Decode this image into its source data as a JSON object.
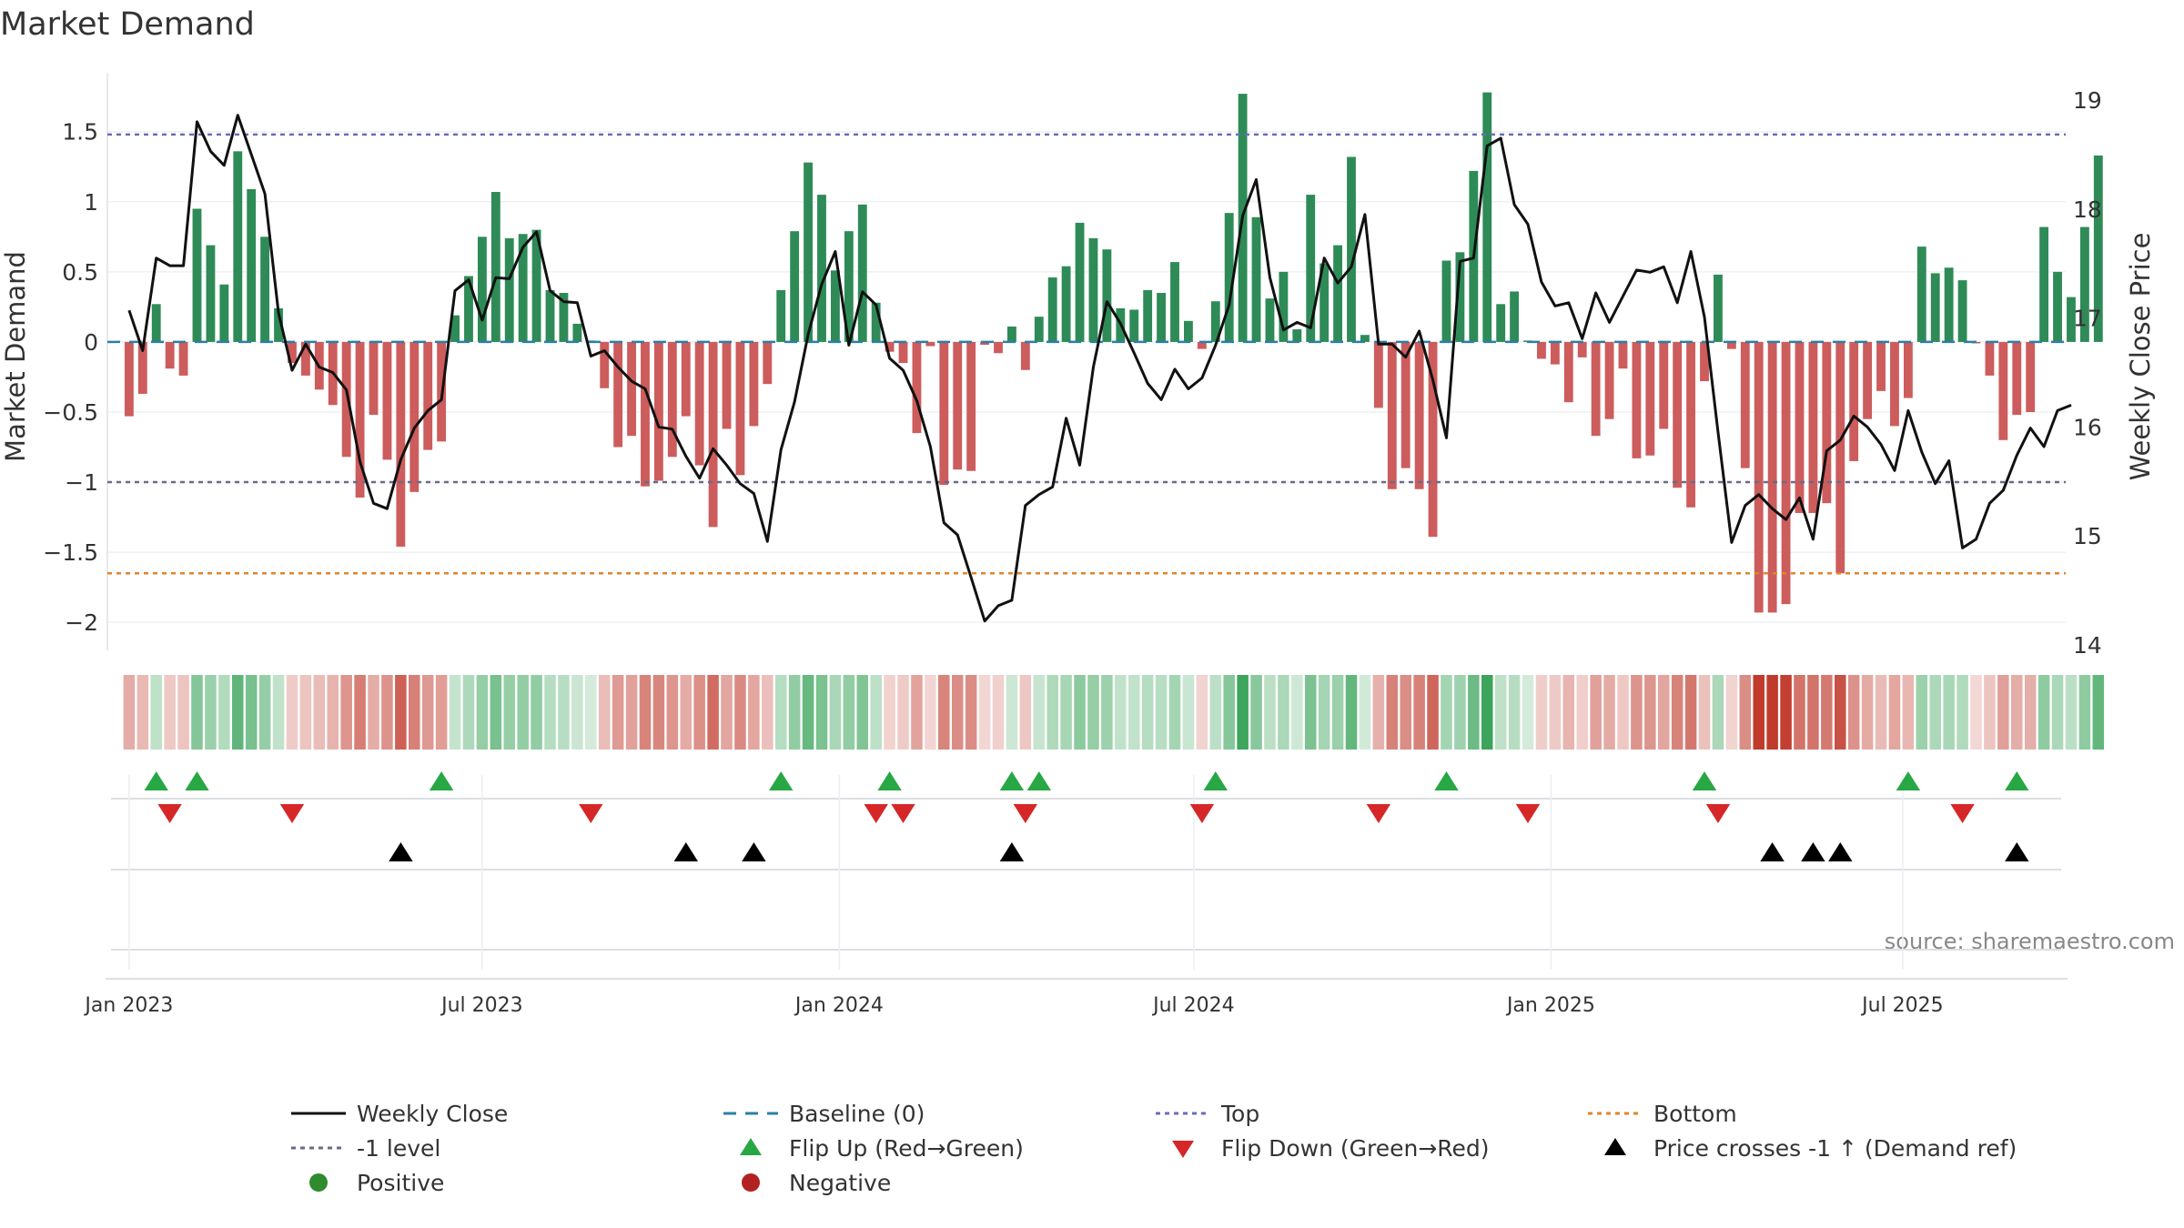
{
  "chart_data": {
    "type": "bar",
    "title": "Market Demand",
    "ylabel": "Market Demand",
    "y2label": "Weekly Close Price",
    "ylim": [
      -2.2,
      1.92
    ],
    "y2lim": [
      13.95,
      19.25
    ],
    "yticks": [
      1.5,
      1,
      0.5,
      0,
      -0.5,
      -1,
      -1.5,
      -2
    ],
    "ytick_labels": [
      "1.5",
      "1",
      "0.5",
      "0",
      "−0.5",
      "−1",
      "−1.5",
      "−2"
    ],
    "y2ticks": [
      19,
      18,
      17,
      16,
      15,
      14
    ],
    "y2tick_labels": [
      "19",
      "18",
      "17",
      "16",
      "15",
      "14"
    ],
    "xlim": [
      -1.6,
      142.6
    ],
    "xticks": [
      0,
      26,
      52.3,
      78.4,
      104.7,
      130.6
    ],
    "xtick_labels": [
      "Jan 2023",
      "Jul 2023",
      "Jan 2024",
      "Jul 2024",
      "Jan 2025",
      "Jul 2025"
    ],
    "top_level": 1.48,
    "minus_one_level": -1.0,
    "bottom_level": -1.65,
    "source": "source: sharemaestro.com",
    "series": [
      {
        "name": "Market Demand",
        "values": [
          -0.53,
          -0.37,
          0.27,
          -0.19,
          -0.24,
          0.95,
          0.69,
          0.41,
          1.36,
          1.09,
          0.75,
          0.24,
          -0.15,
          -0.24,
          -0.34,
          -0.45,
          -0.82,
          -1.11,
          -0.52,
          -0.84,
          -1.46,
          -1.07,
          -0.77,
          -0.71,
          0.19,
          0.47,
          0.75,
          1.07,
          0.74,
          0.77,
          0.8,
          0.37,
          0.35,
          0.13,
          0.01,
          -0.33,
          -0.75,
          -0.67,
          -1.03,
          -0.99,
          -0.82,
          -0.53,
          -0.88,
          -1.32,
          -0.62,
          -0.95,
          -0.6,
          -0.3,
          0.37,
          0.79,
          1.28,
          1.05,
          0.51,
          0.79,
          0.98,
          0.28,
          -0.07,
          -0.15,
          -0.65,
          -0.03,
          -1.02,
          -0.91,
          -0.92,
          -0.02,
          -0.08,
          0.11,
          -0.2,
          0.18,
          0.46,
          0.54,
          0.85,
          0.74,
          0.66,
          0.24,
          0.23,
          0.37,
          0.35,
          0.57,
          0.15,
          -0.05,
          0.29,
          0.92,
          1.77,
          0.89,
          0.31,
          0.5,
          0.09,
          1.05,
          0.56,
          0.69,
          1.32,
          0.05,
          -0.47,
          -1.05,
          -0.9,
          -1.05,
          -1.39,
          0.58,
          0.64,
          1.22,
          1.78,
          0.27,
          0.36,
          0.01,
          -0.12,
          -0.16,
          -0.43,
          -0.11,
          -0.67,
          -0.55,
          -0.19,
          -0.83,
          -0.81,
          -0.62,
          -1.04,
          -1.18,
          -0.28,
          0.48,
          -0.05,
          -0.9,
          -1.93,
          -1.93,
          -1.87,
          -1.22,
          -1.22,
          -1.15,
          -1.65,
          -0.85,
          -0.55,
          -0.35,
          -0.6,
          -0.4,
          0.68,
          0.49,
          0.53,
          0.44,
          -0.01,
          -0.24,
          -0.7,
          -0.52,
          -0.5,
          0.82,
          0.5,
          0.32,
          0.82,
          1.33
        ]
      },
      {
        "name": "Weekly Close",
        "values": [
          17.07,
          16.7,
          17.55,
          17.48,
          17.48,
          18.8,
          18.53,
          18.4,
          18.86,
          18.5,
          18.14,
          17.05,
          16.52,
          16.76,
          16.55,
          16.5,
          16.34,
          15.68,
          15.3,
          15.25,
          15.7,
          15.99,
          16.15,
          16.25,
          17.25,
          17.35,
          16.98,
          17.37,
          17.36,
          17.65,
          17.79,
          17.25,
          17.15,
          17.14,
          16.65,
          16.7,
          16.55,
          16.42,
          16.35,
          16.0,
          15.98,
          15.73,
          15.53,
          15.8,
          15.65,
          15.48,
          15.39,
          14.95,
          15.79,
          16.23,
          16.85,
          17.31,
          17.61,
          16.75,
          17.24,
          17.12,
          16.63,
          16.52,
          16.24,
          15.82,
          15.12,
          15.01,
          14.62,
          14.22,
          14.36,
          14.41,
          15.28,
          15.38,
          15.45,
          16.08,
          15.65,
          16.55,
          17.15,
          16.95,
          16.68,
          16.4,
          16.25,
          16.53,
          16.35,
          16.45,
          16.75,
          17.12,
          17.94,
          18.27,
          17.37,
          16.89,
          16.96,
          16.91,
          17.55,
          17.32,
          17.47,
          17.95,
          16.76,
          16.76,
          16.64,
          16.88,
          16.43,
          15.9,
          17.52,
          17.55,
          18.58,
          18.65,
          18.04,
          17.86,
          17.33,
          17.11,
          17.14,
          16.81,
          17.23,
          16.96,
          17.2,
          17.44,
          17.42,
          17.47,
          17.14,
          17.61,
          17.01,
          15.95,
          14.94,
          15.28,
          15.38,
          15.25,
          15.15,
          15.35,
          14.97,
          15.78,
          15.88,
          16.1,
          16.0,
          15.84,
          15.6,
          16.15,
          15.77,
          15.48,
          15.69,
          14.89,
          14.97,
          15.3,
          15.42,
          15.74,
          15.99,
          15.82,
          16.15,
          16.2
        ]
      }
    ],
    "flip_up_idx": [
      2,
      5,
      23,
      48,
      56,
      65,
      67,
      80,
      97,
      116,
      131,
      139
    ],
    "flip_down_idx": [
      3,
      12,
      34,
      55,
      57,
      66,
      79,
      92,
      103,
      117,
      135
    ],
    "price_cross_idx": [
      20,
      41,
      46,
      65,
      121,
      124,
      126,
      139
    ],
    "legend": [
      {
        "label": "Weekly Close",
        "kind": "line",
        "color": "#111111"
      },
      {
        "label": "Baseline (0)",
        "kind": "dash",
        "color": "#2b7fa6"
      },
      {
        "label": "Top",
        "kind": "dot",
        "color": "#6b6bbb"
      },
      {
        "label": "Bottom",
        "kind": "dot",
        "color": "#e0852a"
      },
      {
        "label": "-1 level",
        "kind": "dot",
        "color": "#6a6a88"
      },
      {
        "label": "Flip Up (Red→Green)",
        "kind": "tri-up",
        "color": "#28a745"
      },
      {
        "label": "Flip Down (Green→Red)",
        "kind": "tri-down",
        "color": "#d62728"
      },
      {
        "label": "Price crosses -1 ↑ (Demand ref)",
        "kind": "tri-up",
        "color": "#000000"
      },
      {
        "label": "Positive",
        "kind": "dot-circle",
        "color": "#2e8b2e"
      },
      {
        "label": "Negative",
        "kind": "dot-circle",
        "color": "#b22222"
      }
    ],
    "colors": {
      "positive_bar": "#2e8b57",
      "negative_bar": "#cd5c5c",
      "flip_up": "#28a745",
      "flip_down": "#d62728",
      "price_line": "#111111",
      "baseline": "#2b7fa6",
      "top_line": "#6b6bbb",
      "minus_one_line": "#6a6a88",
      "bottom_line": "#e0852a"
    }
  }
}
